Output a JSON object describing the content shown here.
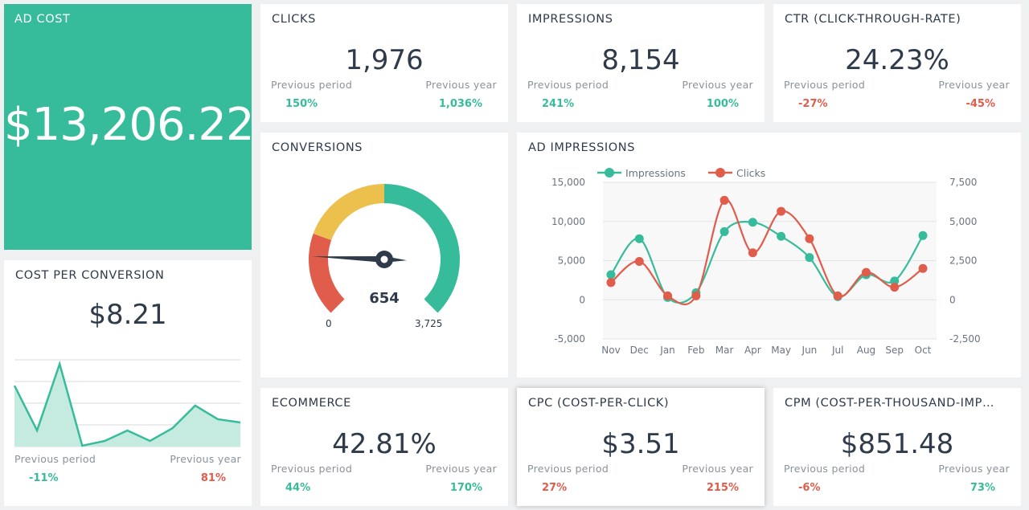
{
  "colors": {
    "green": "#37bc9b",
    "red": "#e05c4b",
    "yellow": "#ecc04c"
  },
  "ad_cost": {
    "title": "AD COST",
    "value": "$13,206.22"
  },
  "kpis": [
    {
      "title": "CLICKS",
      "value": "1,976",
      "prev_label": "Previous period",
      "prev_value": "150%",
      "prev_trend": "up",
      "year_label": "Previous year",
      "year_value": "1,036%",
      "year_trend": "up"
    },
    {
      "title": "IMPRESSIONS",
      "value": "8,154",
      "prev_label": "Previous period",
      "prev_value": "241%",
      "prev_trend": "up",
      "year_label": "Previous year",
      "year_value": "100%",
      "year_trend": "up"
    },
    {
      "title": "CTR (CLICK-THROUGH-RATE)",
      "value": "24.23%",
      "prev_label": "Previous period",
      "prev_value": "-27%",
      "prev_trend": "down",
      "year_label": "Previous year",
      "year_value": "-45%",
      "year_trend": "down"
    },
    {
      "title": "ECOMMERCE",
      "value": "42.81%",
      "prev_label": "Previous period",
      "prev_value": "44%",
      "prev_trend": "up",
      "year_label": "Previous year",
      "year_value": "170%",
      "year_trend": "up"
    },
    {
      "title": "CPC (COST-PER-CLICK)",
      "value": "$3.51",
      "prev_label": "Previous period",
      "prev_value": "27%",
      "prev_trend": "down",
      "year_label": "Previous year",
      "year_value": "215%",
      "year_trend": "down"
    },
    {
      "title": "CPM (COST-PER-THOUSAND-IMP…",
      "value": "$851.48",
      "prev_label": "Previous period",
      "prev_value": "-6%",
      "prev_trend": "down",
      "year_label": "Previous year",
      "year_value": "73%",
      "year_trend": "up"
    }
  ],
  "cost_per_conversion": {
    "title": "COST PER CONVERSION",
    "value": "$8.21",
    "prev_label": "Previous period",
    "prev_value": "-11%",
    "year_label": "Previous year",
    "year_value": "81%",
    "sparkline": [
      2.81,
      0.74,
      3.81,
      0.04,
      0.26,
      0.74,
      0.26,
      0.85,
      1.89,
      1.26,
      1.11
    ]
  },
  "conversions": {
    "title": "CONVERSIONS",
    "value": "654",
    "min": "0",
    "max": "3,725",
    "min_value": 0,
    "max_value": 3725,
    "current": 654
  },
  "chart_data": {
    "type": "line",
    "title": "AD IMPRESSIONS",
    "categories": [
      "Nov",
      "Dec",
      "Jan",
      "Feb",
      "Mar",
      "Apr",
      "May",
      "Jun",
      "Jul",
      "Aug",
      "Sep",
      "Oct"
    ],
    "y_left": {
      "range": [
        -5000,
        15000
      ],
      "ticks": [
        "15,000",
        "10,000",
        "5,000",
        "0",
        "-5,000"
      ]
    },
    "y_right": {
      "range": [
        -2500,
        7500
      ],
      "ticks": [
        "7,500",
        "5,000",
        "2,500",
        "0",
        "-2,500"
      ]
    },
    "legend_position": "top-left",
    "grid": true,
    "series": [
      {
        "name": "Impressions",
        "axis": "left",
        "color": "#37bc9b",
        "values": [
          3200,
          7800,
          300,
          900,
          8700,
          9900,
          8100,
          5400,
          400,
          3200,
          2400,
          8200
        ]
      },
      {
        "name": "Clicks",
        "axis": "right",
        "color": "#e05c4b",
        "values": [
          1100,
          2450,
          250,
          250,
          6350,
          3000,
          5650,
          3900,
          250,
          1750,
          800,
          2000
        ]
      }
    ]
  }
}
